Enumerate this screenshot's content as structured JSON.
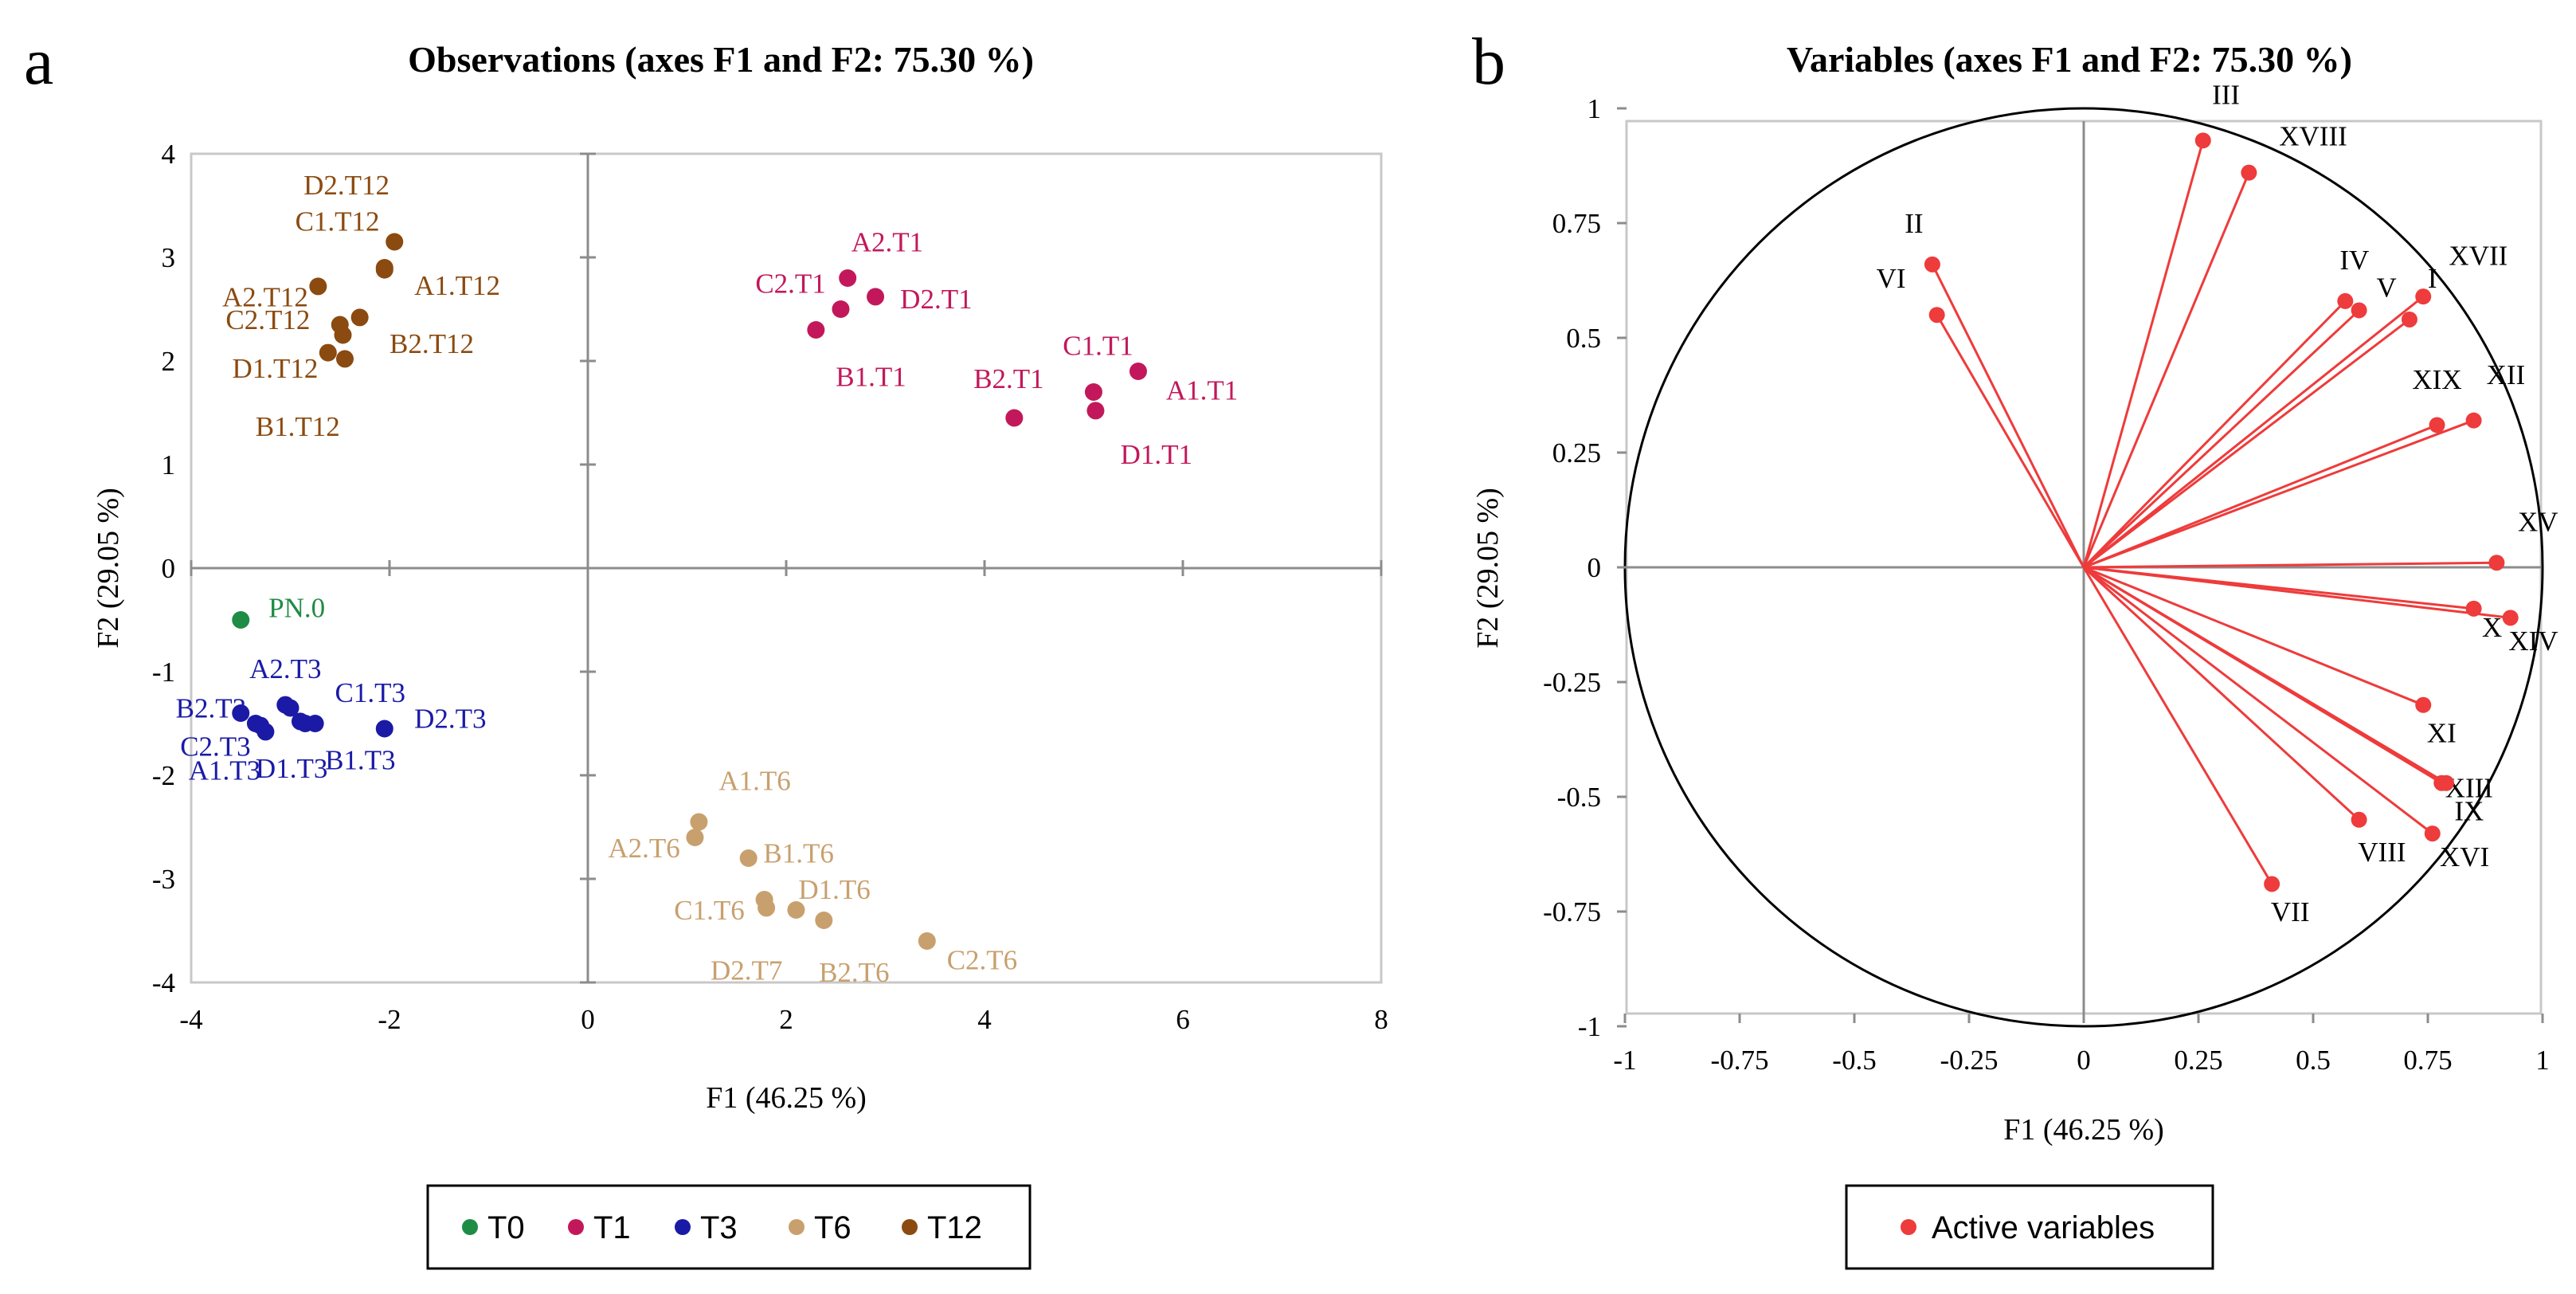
{
  "panels": {
    "a": {
      "letter": "a",
      "title": "Observations (axes F1 and F2: 75.30 %)",
      "xlabel": "F1 (46.25 %)",
      "ylabel": "F2 (29.05 %)"
    },
    "b": {
      "letter": "b",
      "title": "Variables (axes F1 and F2: 75.30 %)",
      "xlabel": "F1 (46.25 %)",
      "ylabel": "F2 (29.05 %)"
    }
  },
  "legend_a": [
    {
      "label": "T0",
      "color": "#1e8c45"
    },
    {
      "label": "T1",
      "color": "#c2185b"
    },
    {
      "label": "T3",
      "color": "#1a1aa6"
    },
    {
      "label": "T6",
      "color": "#c8a06e"
    },
    {
      "label": "T12",
      "color": "#8b4a10"
    }
  ],
  "legend_b": {
    "label": "Active variables",
    "color": "#ee3b3b"
  },
  "chart_data": [
    {
      "type": "scatter",
      "title": "Observations (axes F1 and F2: 75.30 %)",
      "xlabel": "F1 (46.25 %)",
      "ylabel": "F2 (29.05 %)",
      "xlim": [
        -4,
        8
      ],
      "ylim": [
        -4,
        4
      ],
      "xticks": [
        "-4",
        "-2",
        "0",
        "2",
        "4",
        "6",
        "8"
      ],
      "yticks": [
        "4",
        "3",
        "2",
        "1",
        "0",
        "-1",
        "-2",
        "-3",
        "-4"
      ],
      "points": [
        {
          "label": "PN.0",
          "x": -3.5,
          "y": -0.5,
          "group": "T0",
          "anchor": "start",
          "dx": 0.28,
          "dy": 0.12
        },
        {
          "label": "A2.T1",
          "x": 2.62,
          "y": 2.8,
          "group": "T1",
          "anchor": "middle",
          "dx": 0.4,
          "dy": 0.35
        },
        {
          "label": "C2.T1",
          "x": 2.55,
          "y": 2.5,
          "group": "T1",
          "anchor": "end",
          "dx": -0.15,
          "dy": 0.25
        },
        {
          "label": "D2.T1",
          "x": 2.9,
          "y": 2.62,
          "group": "T1",
          "anchor": "start",
          "dx": 0.25,
          "dy": -0.02
        },
        {
          "label": "B1.T1",
          "x": 2.3,
          "y": 2.3,
          "group": "T1",
          "anchor": "start",
          "dx": 0.2,
          "dy": -0.45
        },
        {
          "label": "C1.T1",
          "x": 5.1,
          "y": 1.7,
          "group": "T1",
          "anchor": "end",
          "dx": 0.4,
          "dy": 0.45
        },
        {
          "label": "A1.T1",
          "x": 5.55,
          "y": 1.9,
          "group": "T1",
          "anchor": "start",
          "dx": 0.28,
          "dy": -0.18
        },
        {
          "label": "B2.T1",
          "x": 4.3,
          "y": 1.45,
          "group": "T1",
          "anchor": "end",
          "dx": 0.3,
          "dy": 0.38
        },
        {
          "label": "D1.T1",
          "x": 5.12,
          "y": 1.52,
          "group": "T1",
          "anchor": "start",
          "dx": 0.25,
          "dy": -0.42
        },
        {
          "label": "A2.T3",
          "x": -3.0,
          "y": -1.35,
          "group": "T3",
          "anchor": "middle",
          "dx": -0.05,
          "dy": 0.38
        },
        {
          "label": "B2.T3",
          "x": -3.5,
          "y": -1.4,
          "group": "T3",
          "anchor": "middle",
          "dx": -0.3,
          "dy": 0.05
        },
        {
          "label": "C1.T3",
          "x": -2.75,
          "y": -1.5,
          "group": "T3",
          "anchor": "start",
          "dx": 0.2,
          "dy": 0.3
        },
        {
          "label": "D2.T3",
          "x": -2.05,
          "y": -1.55,
          "group": "T3",
          "anchor": "start",
          "dx": 0.3,
          "dy": 0.1
        },
        {
          "label": "C2.T3",
          "x": -3.3,
          "y": -1.52,
          "group": "T3",
          "anchor": "end",
          "dx": -0.1,
          "dy": -0.2
        },
        {
          "label": "D1.T3",
          "x": -3.25,
          "y": -1.58,
          "group": "T3",
          "anchor": "start",
          "dx": -0.1,
          "dy": -0.35
        },
        {
          "label": "A1.T3",
          "x": -3.35,
          "y": -1.5,
          "group": "T3",
          "anchor": "end",
          "dx": 0.05,
          "dy": -0.45
        },
        {
          "label": "B1.T3",
          "x": -2.85,
          "y": -1.5,
          "group": "T3",
          "anchor": "start",
          "dx": 0.2,
          "dy": -0.35
        },
        {
          "label": "",
          "x": -3.05,
          "y": -1.32,
          "group": "T3"
        },
        {
          "label": "",
          "x": -2.9,
          "y": -1.48,
          "group": "T3"
        },
        {
          "label": "A1.T6",
          "x": 1.12,
          "y": -2.45,
          "group": "T6",
          "anchor": "start",
          "dx": 0.2,
          "dy": 0.4
        },
        {
          "label": "A2.T6",
          "x": 1.08,
          "y": -2.6,
          "group": "T6",
          "anchor": "end",
          "dx": -0.15,
          "dy": -0.1
        },
        {
          "label": "B1.T6",
          "x": 1.62,
          "y": -2.8,
          "group": "T6",
          "anchor": "start",
          "dx": 0.15,
          "dy": 0.05
        },
        {
          "label": "D1.T6",
          "x": 2.1,
          "y": -3.3,
          "group": "T6",
          "anchor": "end",
          "dx": 0.75,
          "dy": 0.2
        },
        {
          "label": "C1.T6",
          "x": 1.78,
          "y": -3.2,
          "group": "T6",
          "anchor": "end",
          "dx": -0.2,
          "dy": -0.1
        },
        {
          "label": "D2.T7",
          "x": 1.8,
          "y": -3.28,
          "group": "T6",
          "anchor": "middle",
          "dx": -0.2,
          "dy": -0.6
        },
        {
          "label": "B2.T6",
          "x": 2.38,
          "y": -3.4,
          "group": "T6",
          "anchor": "start",
          "dx": -0.05,
          "dy": -0.5
        },
        {
          "label": "C2.T6",
          "x": 3.42,
          "y": -3.6,
          "group": "T6",
          "anchor": "start",
          "dx": 0.2,
          "dy": -0.18
        },
        {
          "label": "D2.T12",
          "x": -1.95,
          "y": 3.15,
          "group": "T12",
          "anchor": "end",
          "dx": -0.05,
          "dy": 0.55
        },
        {
          "label": "C1.T12",
          "x": -2.05,
          "y": 2.9,
          "group": "T12",
          "anchor": "end",
          "dx": -0.05,
          "dy": 0.45
        },
        {
          "label": "A1.T12",
          "x": -2.05,
          "y": 2.88,
          "group": "T12",
          "anchor": "start",
          "dx": 0.3,
          "dy": -0.15
        },
        {
          "label": "A2.T12",
          "x": -2.72,
          "y": 2.72,
          "group": "T12",
          "anchor": "end",
          "dx": -0.1,
          "dy": -0.1
        },
        {
          "label": "C2.T12",
          "x": -2.5,
          "y": 2.35,
          "group": "T12",
          "anchor": "end",
          "dx": -0.3,
          "dy": 0.05
        },
        {
          "label": "B2.T12",
          "x": -2.3,
          "y": 2.42,
          "group": "T12",
          "anchor": "start",
          "dx": 0.3,
          "dy": -0.25
        },
        {
          "label": "D1.T12",
          "x": -2.62,
          "y": 2.08,
          "group": "T12",
          "anchor": "end",
          "dx": -0.1,
          "dy": -0.15
        },
        {
          "label": "B1.T12",
          "x": -2.45,
          "y": 2.02,
          "group": "T12",
          "anchor": "end",
          "dx": -0.05,
          "dy": -0.65
        },
        {
          "label": "",
          "x": -2.47,
          "y": 2.25,
          "group": "T12"
        }
      ]
    },
    {
      "type": "scatter",
      "subtype": "correlation-circle",
      "title": "Variables (axes F1 and F2: 75.30 %)",
      "xlabel": "F1 (46.25 %)",
      "ylabel": "F2 (29.05 %)",
      "xlim": [
        -1,
        1
      ],
      "ylim": [
        -1,
        1
      ],
      "xticks": [
        "-1",
        "-0.75",
        "-0.5",
        "-0.25",
        "0",
        "0.25",
        "0.5",
        "0.75",
        "1"
      ],
      "yticks": [
        "1",
        "0.75",
        "0.5",
        "0.25",
        "0",
        "-0.25",
        "-0.5",
        "-0.75",
        "-1"
      ],
      "series": [
        {
          "name": "Active variables"
        }
      ],
      "variables": [
        {
          "label": "III",
          "x": 0.26,
          "y": 0.93,
          "dx": 0.05,
          "dy": 0.1
        },
        {
          "label": "XVIII",
          "x": 0.36,
          "y": 0.86,
          "dx": 0.14,
          "dy": 0.08
        },
        {
          "label": "II",
          "x": -0.33,
          "y": 0.66,
          "dx": -0.04,
          "dy": 0.09
        },
        {
          "label": "VI",
          "x": -0.32,
          "y": 0.55,
          "dx": -0.1,
          "dy": 0.08
        },
        {
          "label": "IV",
          "x": 0.57,
          "y": 0.58,
          "dx": 0.02,
          "dy": 0.09
        },
        {
          "label": "V",
          "x": 0.6,
          "y": 0.56,
          "dx": 0.06,
          "dy": 0.05
        },
        {
          "label": "XVII",
          "x": 0.74,
          "y": 0.59,
          "dx": 0.12,
          "dy": 0.09
        },
        {
          "label": "I",
          "x": 0.71,
          "y": 0.54,
          "dx": 0.05,
          "dy": 0.09
        },
        {
          "label": "XIX",
          "x": 0.77,
          "y": 0.31,
          "dx": 0.0,
          "dy": 0.1
        },
        {
          "label": "XII",
          "x": 0.85,
          "y": 0.32,
          "dx": 0.07,
          "dy": 0.1
        },
        {
          "label": "XV",
          "x": 0.9,
          "y": 0.01,
          "dx": 0.09,
          "dy": 0.09
        },
        {
          "label": "X",
          "x": 0.85,
          "y": -0.09,
          "dx": 0.04,
          "dy": -0.04
        },
        {
          "label": "XIV",
          "x": 0.93,
          "y": -0.11,
          "dx": 0.05,
          "dy": -0.05
        },
        {
          "label": "XI",
          "x": 0.74,
          "y": -0.3,
          "dx": 0.04,
          "dy": -0.06
        },
        {
          "label": "XIII",
          "x": 0.78,
          "y": -0.47,
          "dx": 0.06,
          "dy": -0.01
        },
        {
          "label": "IX",
          "x": 0.79,
          "y": -0.47,
          "dx": 0.05,
          "dy": -0.06
        },
        {
          "label": "VIII",
          "x": 0.6,
          "y": -0.55,
          "dx": 0.05,
          "dy": -0.07
        },
        {
          "label": "XVI",
          "x": 0.76,
          "y": -0.58,
          "dx": 0.07,
          "dy": -0.05
        },
        {
          "label": "VII",
          "x": 0.41,
          "y": -0.69,
          "dx": 0.04,
          "dy": -0.06
        }
      ]
    }
  ]
}
